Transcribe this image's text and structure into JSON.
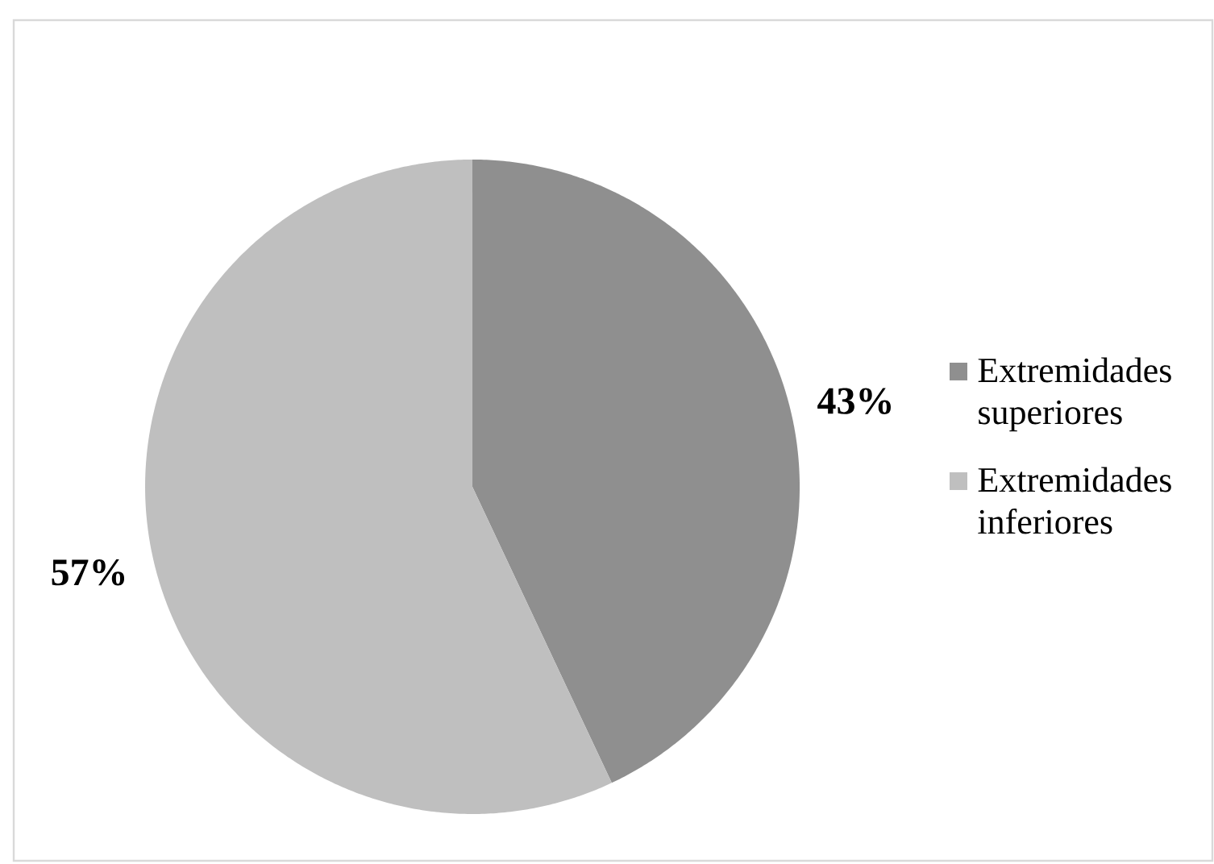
{
  "chart_data": {
    "type": "pie",
    "categories": [
      "Extremidades superiores",
      "Extremidades inferiores"
    ],
    "values": [
      43,
      57
    ],
    "colors": [
      "#8f8f8f",
      "#bfbfbf"
    ],
    "value_labels": [
      "43%",
      "57%"
    ],
    "legend": "right"
  }
}
